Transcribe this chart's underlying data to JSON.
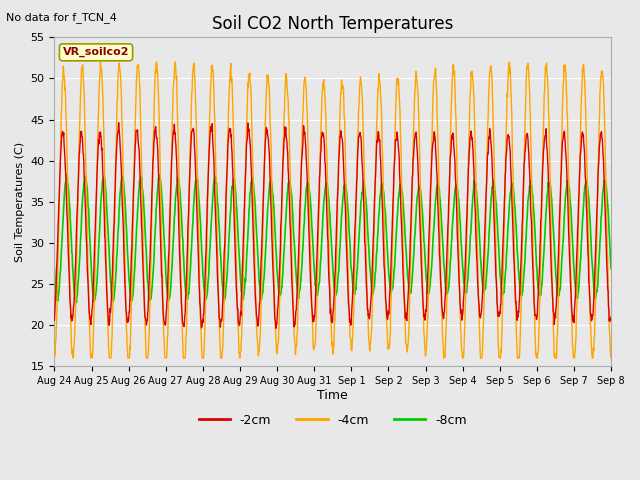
{
  "title": "Soil CO2 North Temperatures",
  "no_data_text": "No data for f_TCN_4",
  "ylabel": "Soil Temperatures (C)",
  "xlabel": "Time",
  "ylim": [
    15,
    55
  ],
  "plot_bg": "#e8e8e8",
  "fig_bg": "#e8e8e8",
  "legend_label": "VR_soilco2",
  "x_tick_labels": [
    "Aug 24",
    "Aug 25",
    "Aug 26",
    "Aug 27",
    "Aug 28",
    "Aug 29",
    "Aug 30",
    "Aug 31",
    "Sep 1",
    "Sep 2",
    "Sep 3",
    "Sep 4",
    "Sep 5",
    "Sep 6",
    "Sep 7",
    "Sep 8"
  ],
  "col_2cm": "#dd0000",
  "col_4cm": "#ffa500",
  "col_8cm": "#00cc00",
  "lab_2cm": "-2cm",
  "lab_4cm": "-4cm",
  "lab_8cm": "-8cm",
  "grid_color": "#ffffff",
  "yticks": [
    15,
    20,
    25,
    30,
    35,
    40,
    45,
    50,
    55
  ]
}
